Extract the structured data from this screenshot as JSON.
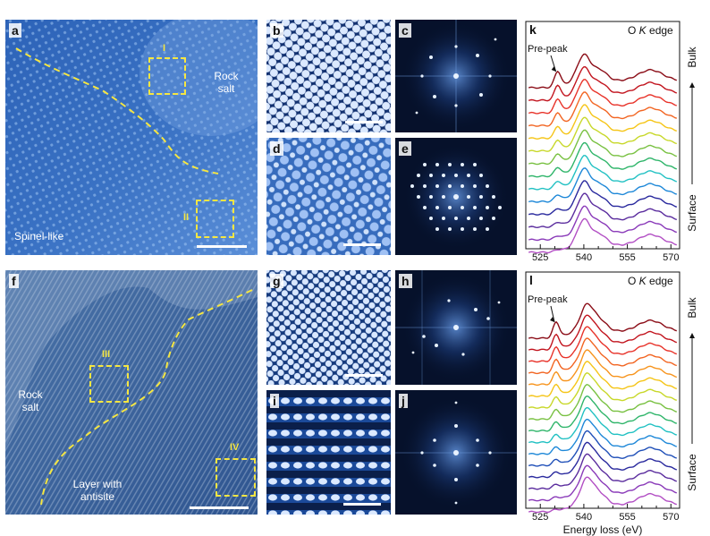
{
  "panels": {
    "a": {
      "label": "a",
      "region_rock": "Rock\nsalt",
      "region_spinel": "Spinel-like",
      "box1": "I",
      "box2": "II"
    },
    "b": {
      "label": "b"
    },
    "c": {
      "label": "c"
    },
    "d": {
      "label": "d"
    },
    "e": {
      "label": "e"
    },
    "f": {
      "label": "f",
      "region_rock": "Rock\nsalt",
      "region_layer": "Layer with\nantisite",
      "box1": "III",
      "box2": "IV"
    },
    "g": {
      "label": "g"
    },
    "h": {
      "label": "h"
    },
    "i": {
      "label": "i"
    },
    "j": {
      "label": "j"
    },
    "k": {
      "label": "k"
    },
    "l": {
      "label": "l"
    }
  },
  "colors": {
    "annotation": "#f5e642",
    "series": [
      "#8b0d17",
      "#c2141e",
      "#e8332a",
      "#f26522",
      "#f7941d",
      "#f5c518",
      "#c8d82a",
      "#79c142",
      "#2fb56a",
      "#22c1c3",
      "#1e88d8",
      "#1f4fb8",
      "#2a2a9e",
      "#5b2d9e",
      "#8a3ab9",
      "#b24fc4"
    ]
  },
  "chart_data": [
    {
      "panel": "k",
      "type": "line",
      "title": "O K edge",
      "xlabel": "",
      "ylabel_top": "Bulk",
      "ylabel_bottom": "Surface",
      "xlim": [
        520,
        573
      ],
      "xticks": [
        "525",
        "530",
        "535",
        "540",
        "545",
        "550",
        "555",
        "560",
        "565",
        "570"
      ],
      "xtick_labels": [
        "525",
        "540",
        "555",
        "570"
      ],
      "annotation": "Pre-peak",
      "series_count": 14,
      "prepeak_energy": 531,
      "main_peak_energy": 540,
      "broad_peak_energy": 563
    },
    {
      "panel": "l",
      "type": "line",
      "title": "O K edge",
      "xlabel": "Energy loss (eV)",
      "ylabel_top": "Bulk",
      "ylabel_bottom": "Surface",
      "xlim": [
        520,
        573
      ],
      "xticks": [
        "525",
        "530",
        "535",
        "540",
        "545",
        "550",
        "555",
        "560",
        "565",
        "570"
      ],
      "xtick_labels": [
        "525",
        "540",
        "555",
        "570"
      ],
      "annotation": "Pre-peak",
      "series_count": 16,
      "prepeak_energy": 530.5,
      "main_peak_energy": 541,
      "broad_peak_energy": 563
    }
  ]
}
